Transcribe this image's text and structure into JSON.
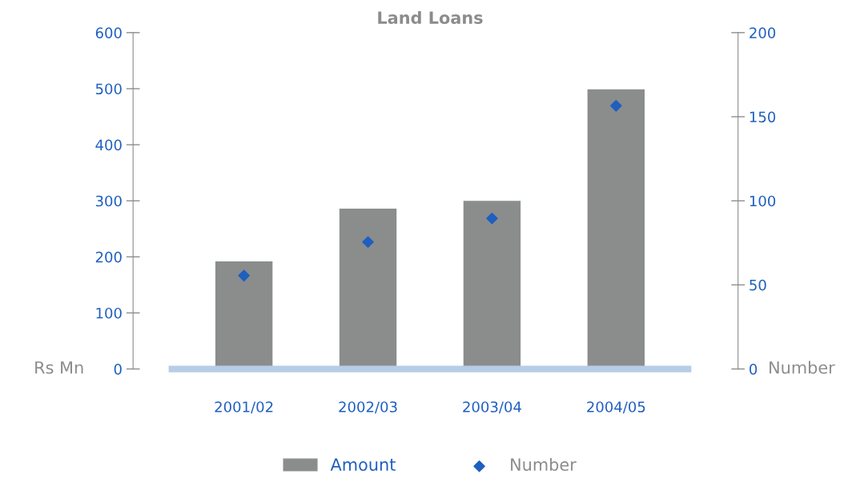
{
  "chart_data": {
    "type": "bar",
    "title": "Land Loans",
    "ylabel": "Rs Mn",
    "y2label": "Number",
    "categories": [
      "2001/02",
      "2002/03",
      "2003/04",
      "2004/05"
    ],
    "series": [
      {
        "name": "Amount",
        "color": "#8a8d8c",
        "values": [
          193,
          287,
          301,
          500
        ]
      },
      {
        "name": "Number",
        "type": "scatter",
        "axis": "y2",
        "color": "#1f5fbf",
        "marker": "diamond",
        "values": [
          55.5,
          75.5,
          89.5,
          156.5
        ]
      }
    ],
    "ylim": [
      0,
      600
    ],
    "yticks": [
      0,
      100,
      200,
      300,
      400,
      500,
      600
    ],
    "y2lim": [
      0,
      200
    ],
    "y2ticks": [
      0,
      50,
      100,
      150,
      200
    ],
    "grid": false,
    "legend": "bottom"
  }
}
